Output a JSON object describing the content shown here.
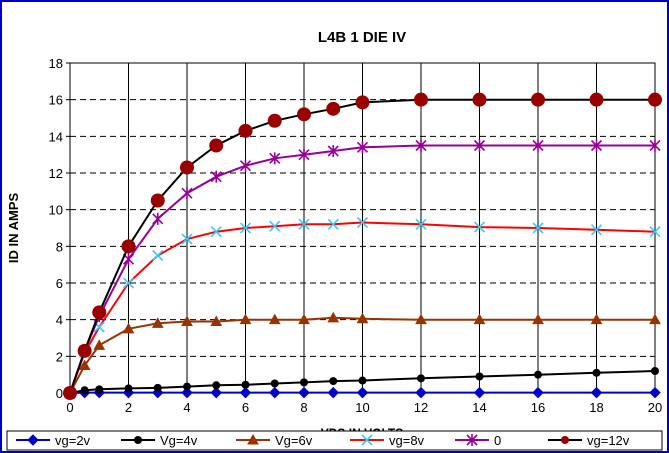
{
  "chart_data": {
    "type": "line",
    "title": "L4B  1 DIE  IV",
    "xlabel": "VDS IN VOLTS",
    "ylabel": "ID IN AMPS",
    "xlim": [
      0,
      20
    ],
    "ylim": [
      0,
      18
    ],
    "x_ticks": [
      0,
      2,
      4,
      6,
      8,
      10,
      12,
      14,
      16,
      18,
      20
    ],
    "y_ticks": [
      0,
      2,
      4,
      6,
      8,
      10,
      12,
      14,
      16,
      18
    ],
    "grid": "vertical solid, horizontal dashed",
    "legend_position": "bottom",
    "series": [
      {
        "name": "vg=2v",
        "color": "#0000CC",
        "line_color": "#0000CC",
        "marker": "diamond",
        "points": [
          [
            0,
            0
          ],
          [
            0.5,
            0.02
          ],
          [
            1,
            0.02
          ],
          [
            2,
            0.02
          ],
          [
            3,
            0.02
          ],
          [
            4,
            0.02
          ],
          [
            5,
            0.02
          ],
          [
            6,
            0.02
          ],
          [
            7,
            0.02
          ],
          [
            8,
            0.02
          ],
          [
            9,
            0.02
          ],
          [
            10,
            0.02
          ],
          [
            12,
            0.02
          ],
          [
            14,
            0.02
          ],
          [
            16,
            0.02
          ],
          [
            18,
            0.02
          ],
          [
            20,
            0.02
          ]
        ]
      },
      {
        "name": "Vg=4v",
        "color": "#000000",
        "line_color": "#000000",
        "marker": "circle",
        "points": [
          [
            0,
            0
          ],
          [
            0.5,
            0.15
          ],
          [
            1,
            0.2
          ],
          [
            2,
            0.25
          ],
          [
            3,
            0.28
          ],
          [
            4,
            0.35
          ],
          [
            5,
            0.42
          ],
          [
            6,
            0.45
          ],
          [
            7,
            0.52
          ],
          [
            8,
            0.58
          ],
          [
            9,
            0.65
          ],
          [
            10,
            0.68
          ],
          [
            12,
            0.8
          ],
          [
            14,
            0.9
          ],
          [
            16,
            1.0
          ],
          [
            18,
            1.1
          ],
          [
            20,
            1.2
          ]
        ]
      },
      {
        "name": "Vg=6v",
        "color": "#993300",
        "line_color": "#993300",
        "marker": "triangle",
        "points": [
          [
            0,
            0
          ],
          [
            0.5,
            1.5
          ],
          [
            1,
            2.6
          ],
          [
            2,
            3.5
          ],
          [
            3,
            3.8
          ],
          [
            4,
            3.9
          ],
          [
            5,
            3.9
          ],
          [
            6,
            4.0
          ],
          [
            7,
            4.0
          ],
          [
            8,
            4.0
          ],
          [
            9,
            4.1
          ],
          [
            10,
            4.05
          ],
          [
            12,
            4.0
          ],
          [
            14,
            4.0
          ],
          [
            16,
            4.0
          ],
          [
            18,
            4.0
          ],
          [
            20,
            4.0
          ]
        ]
      },
      {
        "name": "vg=8v",
        "color": "#33CCFF",
        "line_color": "#FF0000",
        "marker": "x",
        "points": [
          [
            0,
            0
          ],
          [
            0.5,
            2.2
          ],
          [
            1,
            3.6
          ],
          [
            2,
            6.0
          ],
          [
            3,
            7.5
          ],
          [
            4,
            8.4
          ],
          [
            5,
            8.8
          ],
          [
            6,
            9.0
          ],
          [
            7,
            9.1
          ],
          [
            8,
            9.2
          ],
          [
            9,
            9.2
          ],
          [
            10,
            9.3
          ],
          [
            12,
            9.2
          ],
          [
            14,
            9.05
          ],
          [
            16,
            9.0
          ],
          [
            18,
            8.9
          ],
          [
            20,
            8.8
          ]
        ]
      },
      {
        "name": "0",
        "color": "#990099",
        "line_color": "#990099",
        "marker": "star",
        "points": [
          [
            0,
            0
          ],
          [
            0.5,
            2.3
          ],
          [
            1,
            4.2
          ],
          [
            2,
            7.3
          ],
          [
            3,
            9.5
          ],
          [
            4,
            10.9
          ],
          [
            5,
            11.8
          ],
          [
            6,
            12.4
          ],
          [
            7,
            12.8
          ],
          [
            8,
            13.0
          ],
          [
            9,
            13.2
          ],
          [
            10,
            13.4
          ],
          [
            12,
            13.5
          ],
          [
            14,
            13.5
          ],
          [
            16,
            13.5
          ],
          [
            18,
            13.5
          ],
          [
            20,
            13.5
          ]
        ]
      },
      {
        "name": "vg=12v",
        "color": "#990000",
        "line_color": "#000000",
        "marker": "bigcircle",
        "points": [
          [
            0,
            0
          ],
          [
            0.5,
            2.3
          ],
          [
            1,
            4.4
          ],
          [
            2,
            8.0
          ],
          [
            3,
            10.5
          ],
          [
            4,
            12.3
          ],
          [
            5,
            13.5
          ],
          [
            6,
            14.3
          ],
          [
            7,
            14.85
          ],
          [
            8,
            15.2
          ],
          [
            9,
            15.5
          ],
          [
            10,
            15.85
          ],
          [
            12,
            16.0
          ],
          [
            14,
            16.0
          ],
          [
            16,
            16.0
          ],
          [
            18,
            16.0
          ],
          [
            20,
            16.0
          ]
        ]
      }
    ]
  }
}
